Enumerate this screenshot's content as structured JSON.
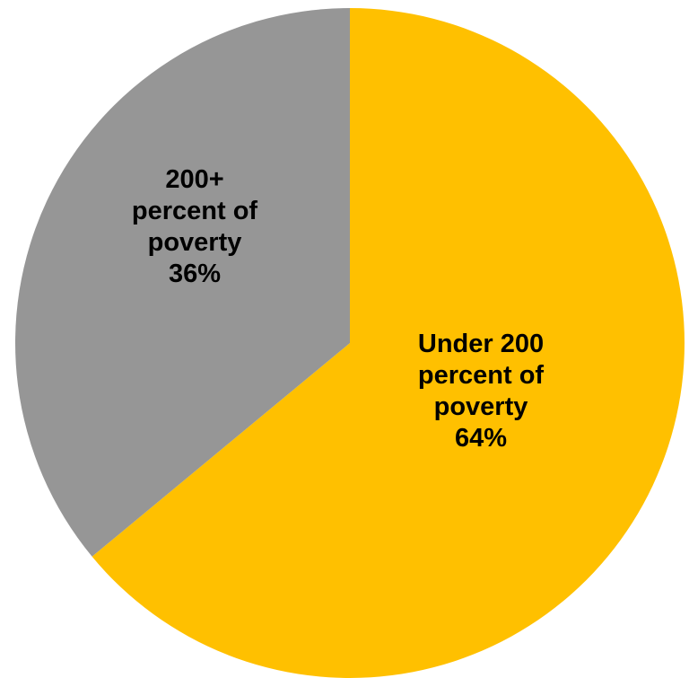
{
  "chart_data": {
    "type": "pie",
    "start_angle_deg": 0,
    "direction": "clockwise",
    "slices": [
      {
        "lines": [
          "Under 200",
          "percent of",
          "poverty",
          "64%"
        ],
        "value": 64,
        "color": "#FFC000"
      },
      {
        "lines": [
          "200+",
          "percent of",
          "poverty",
          "36%"
        ],
        "value": 36,
        "color": "#969696"
      }
    ]
  }
}
